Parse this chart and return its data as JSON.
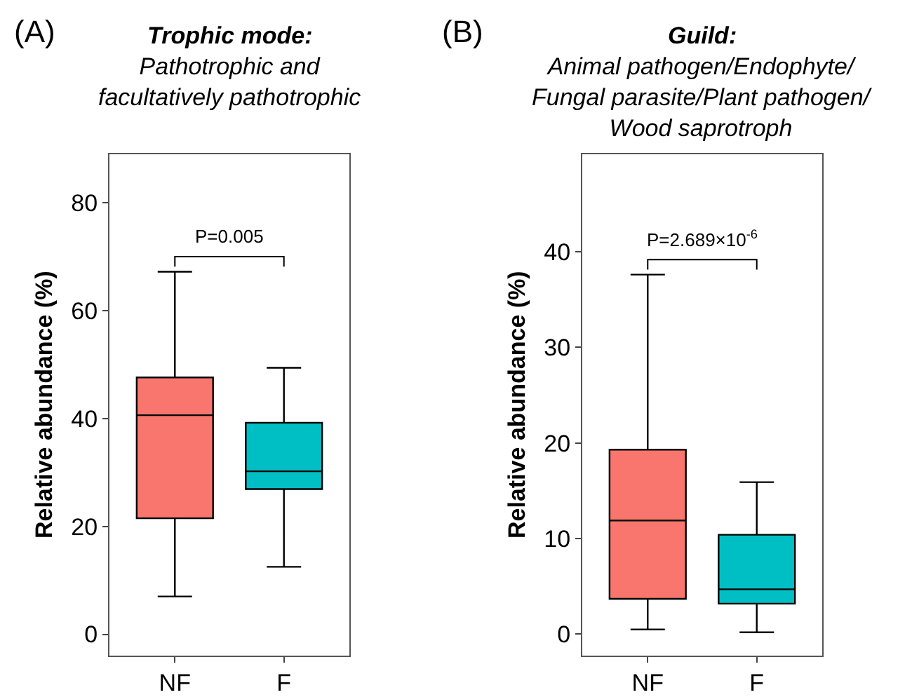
{
  "chart_data": [
    {
      "type": "box",
      "title": "Trophic mode:",
      "subtitle": "Pathotrophic and\nfacultatively pathotrophic",
      "ylabel": "Relative abundance (%)",
      "categories": [
        "NF",
        "F"
      ],
      "colors": [
        "#f8766d",
        "#00bfc4"
      ],
      "boxes": [
        {
          "low": 7.0,
          "q1": 21.5,
          "median": 40.6,
          "q3": 47.6,
          "high": 67.2
        },
        {
          "low": 12.5,
          "q1": 26.9,
          "median": 30.2,
          "q3": 39.2,
          "high": 49.4
        }
      ],
      "ylim": [
        -3.9,
        89
      ],
      "yticks": [
        0,
        20,
        40,
        60,
        80
      ],
      "annotations": [
        "(A)",
        "P=0.005"
      ]
    },
    {
      "type": "box",
      "title": "Guild:",
      "subtitle": "Animal pathogen/Endophyte/\nFungal parasite/Plant pathogen/\nWood saprotroph",
      "ylabel": "Relative abundance (%)",
      "categories": [
        "NF",
        "F"
      ],
      "colors": [
        "#f8766d",
        "#00bfc4"
      ],
      "boxes": [
        {
          "low": 0.5,
          "q1": 3.7,
          "median": 11.9,
          "q3": 19.3,
          "high": 37.6
        },
        {
          "low": 0.2,
          "q1": 3.2,
          "median": 4.7,
          "q3": 10.4,
          "high": 15.9
        }
      ],
      "ylim": [
        -2.2,
        50.2
      ],
      "yticks": [
        0,
        10,
        20,
        30,
        40
      ],
      "annotations": [
        "(B)",
        "P=2.689×10$^{-6}$"
      ]
    }
  ]
}
